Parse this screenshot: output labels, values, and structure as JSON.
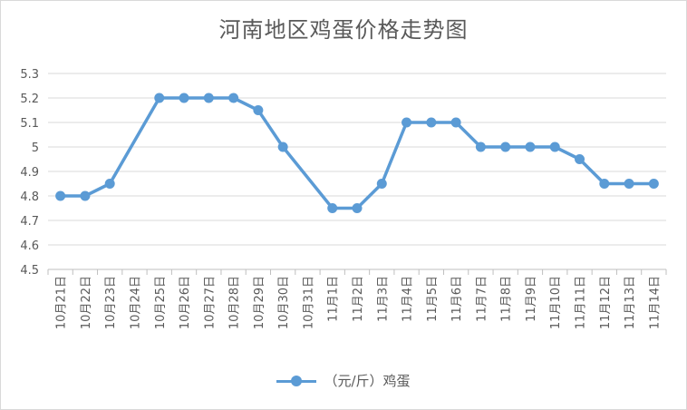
{
  "chart_data": {
    "type": "line",
    "title": "河南地区鸡蛋价格走势图",
    "categories": [
      "10月21日",
      "10月22日",
      "10月23日",
      "10月24日",
      "10月25日",
      "10月26日",
      "10月27日",
      "10月28日",
      "10月29日",
      "10月30日",
      "10月31日",
      "11月1日",
      "11月2日",
      "11月3日",
      "11月4日",
      "11月5日",
      "11月6日",
      "11月7日",
      "11月8日",
      "11月9日",
      "11月10日",
      "11月11日",
      "11月12日",
      "11月13日",
      "11月14日"
    ],
    "series": [
      {
        "name": "（元/斤）鸡蛋",
        "color": "#5b9bd5",
        "points": [
          {
            "x": "10月21日",
            "y": 4.8
          },
          {
            "x": "10月22日",
            "y": 4.8
          },
          {
            "x": "10月23日",
            "y": 4.85
          },
          {
            "x": "10月25日",
            "y": 5.2
          },
          {
            "x": "10月26日",
            "y": 5.2
          },
          {
            "x": "10月27日",
            "y": 5.2
          },
          {
            "x": "10月28日",
            "y": 5.2
          },
          {
            "x": "10月29日",
            "y": 5.15
          },
          {
            "x": "10月30日",
            "y": 5.0
          },
          {
            "x": "11月1日",
            "y": 4.75
          },
          {
            "x": "11月2日",
            "y": 4.75
          },
          {
            "x": "11月3日",
            "y": 4.85
          },
          {
            "x": "11月4日",
            "y": 5.1
          },
          {
            "x": "11月5日",
            "y": 5.1
          },
          {
            "x": "11月6日",
            "y": 5.1
          },
          {
            "x": "11月7日",
            "y": 5.0
          },
          {
            "x": "11月8日",
            "y": 5.0
          },
          {
            "x": "11月9日",
            "y": 5.0
          },
          {
            "x": "11月10日",
            "y": 5.0
          },
          {
            "x": "11月11日",
            "y": 4.95
          },
          {
            "x": "11月12日",
            "y": 4.85
          },
          {
            "x": "11月13日",
            "y": 4.85
          },
          {
            "x": "11月14日",
            "y": 4.85
          }
        ]
      }
    ],
    "yticks": [
      "4.5",
      "4.6",
      "4.7",
      "4.8",
      "4.9",
      "5",
      "5.1",
      "5.2",
      "5.3"
    ],
    "ylim": [
      4.5,
      5.3
    ],
    "xlabel": "",
    "ylabel": "",
    "grid": "horizontal",
    "legend": "bottom"
  }
}
